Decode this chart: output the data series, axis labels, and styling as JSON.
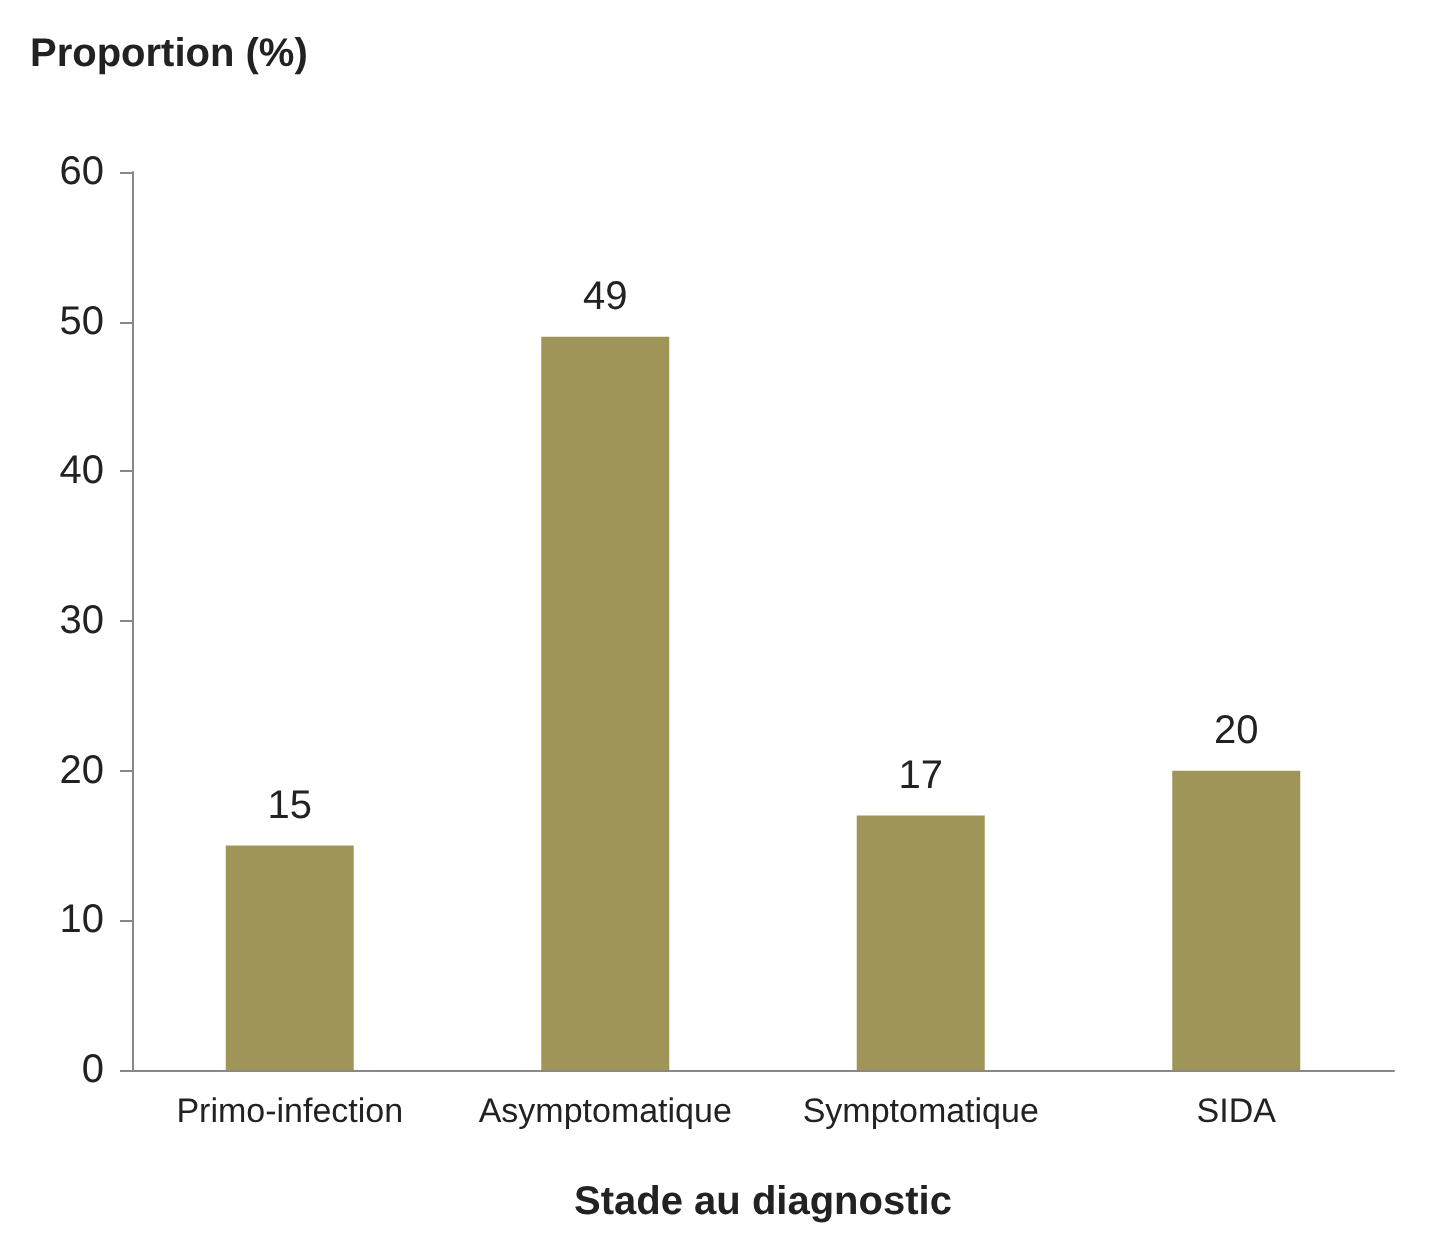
{
  "chart_data": {
    "type": "bar",
    "ylabel": "Proportion (%)",
    "xlabel": "Stade au diagnostic",
    "categories": [
      "Primo-infection",
      "Asymptomatique",
      "Symptomatique",
      "SIDA"
    ],
    "values": [
      15,
      49,
      17,
      20
    ],
    "color": "#a09558",
    "ylim": [
      0,
      60
    ],
    "yticks": [
      0,
      10,
      20,
      30,
      40,
      50,
      60
    ],
    "grid": false,
    "data_labels": true
  }
}
